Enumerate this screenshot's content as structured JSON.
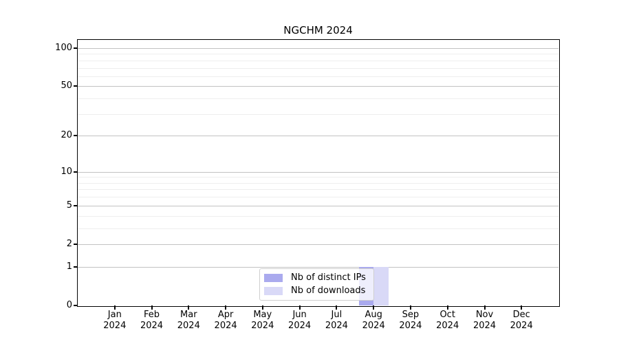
{
  "chart_data": {
    "type": "bar",
    "title": "NGCHM 2024",
    "categories": [
      "Jan 2024",
      "Feb 2024",
      "Mar 2024",
      "Apr 2024",
      "May 2024",
      "Jun 2024",
      "Jul 2024",
      "Aug 2024",
      "Sep 2024",
      "Oct 2024",
      "Nov 2024",
      "Dec 2024"
    ],
    "series": [
      {
        "name": "Nb of distinct IPs",
        "color": "#aaaaee",
        "values": [
          0,
          0,
          0,
          0,
          0,
          0,
          0,
          1,
          0,
          0,
          0,
          0
        ]
      },
      {
        "name": "Nb of downloads",
        "color": "#d9d9f7",
        "values": [
          0,
          0,
          0,
          0,
          0,
          0,
          0,
          1,
          0,
          0,
          0,
          0
        ]
      }
    ],
    "yscale": "log1p",
    "ylim": [
      0,
      116
    ],
    "y_tick_values": [
      0,
      1,
      2,
      5,
      10,
      20,
      50,
      100
    ],
    "y_minor_values": [
      3,
      4,
      6,
      7,
      8,
      9,
      30,
      40,
      60,
      70,
      80,
      90
    ],
    "grid": true,
    "legend_position": "lower center",
    "colors": {
      "major_grid": "#c2c2c2",
      "minor_grid": "#eeeeee",
      "axis": "#000000",
      "background": "#ffffff",
      "legend_border": "#cfcfcf"
    }
  }
}
